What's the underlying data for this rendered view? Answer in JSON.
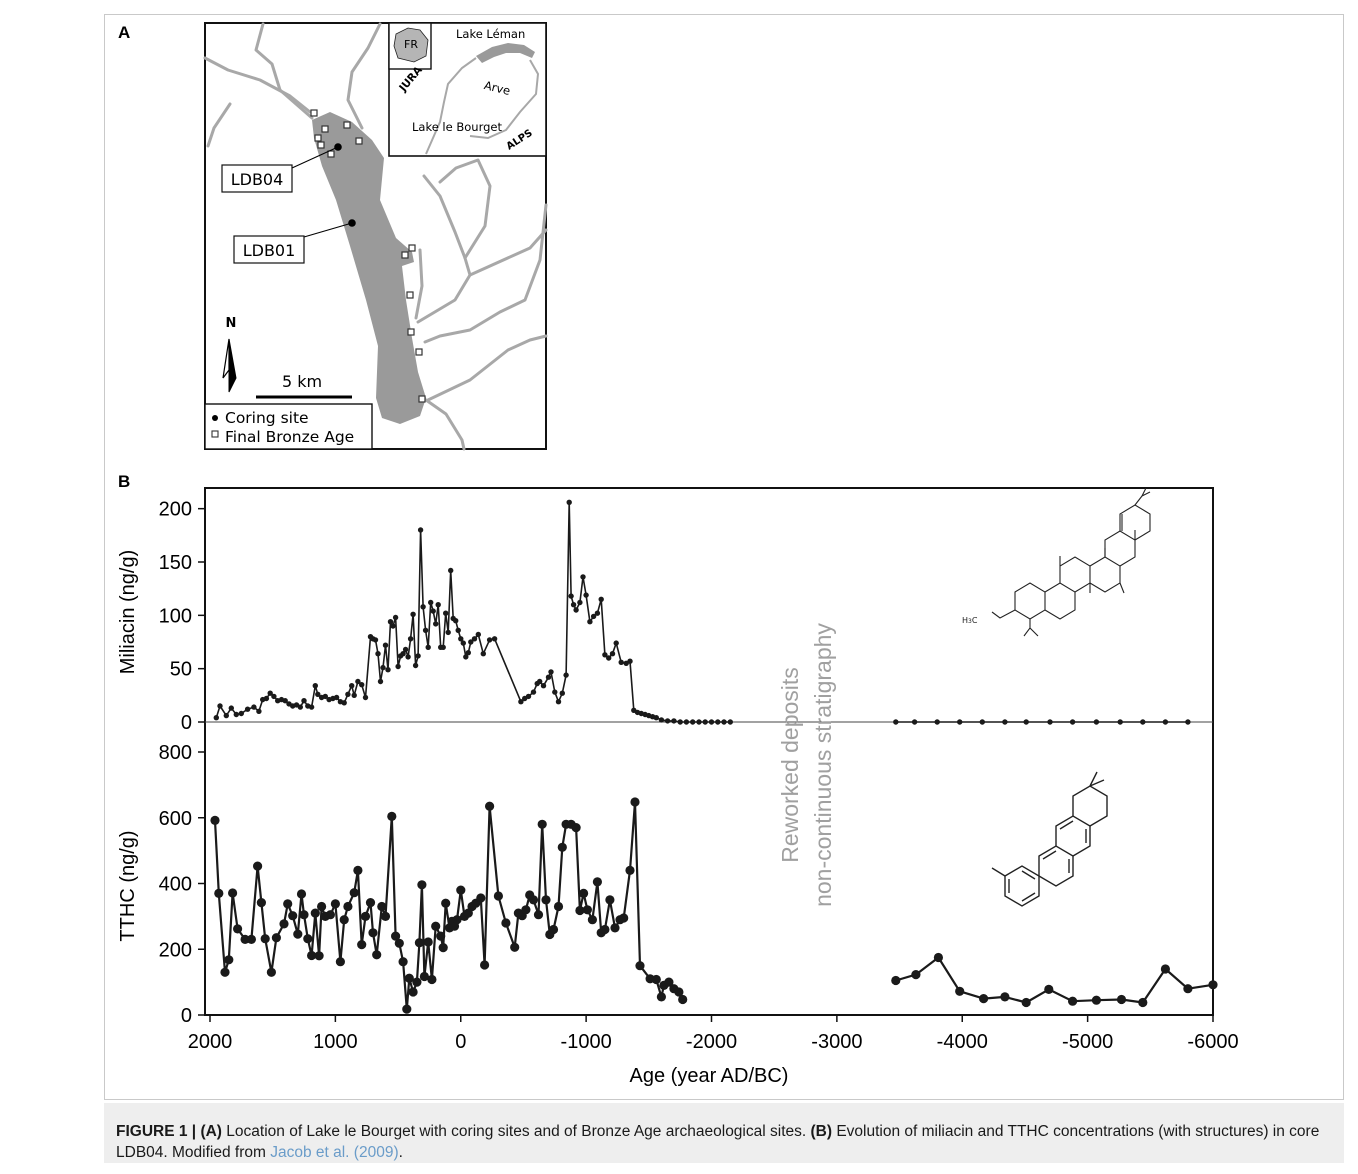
{
  "panel_a": {
    "label": "A",
    "inset": {
      "country": "FR",
      "lake_leman": "Lake Léman",
      "arve": "Arve",
      "lake_bourget": "Lake le Bourget",
      "jura": "JURA",
      "alps": "ALPS"
    },
    "callouts": [
      "LDB04",
      "LDB01"
    ],
    "north": "N",
    "scale": "5 km",
    "legend": [
      "Coring site",
      "Final Bronze Age"
    ],
    "colors": {
      "lake": "#9a9a9a",
      "rivers": "#a8a8a8"
    }
  },
  "panel_b": {
    "label": "B",
    "overlay": [
      "Reworked deposits",
      "non-continuous stratigraphy"
    ]
  },
  "chart_data": {
    "type": "line",
    "xlabel": "Age (year AD/BC)",
    "xlim": [
      2000,
      -6000
    ],
    "x_ticks": [
      "2000",
      "1000",
      "0",
      "-1000",
      "-2000",
      "-3000",
      "-4000",
      "-5000",
      "-6000"
    ],
    "panels": [
      {
        "ylabel": "Miliacin (ng/g)",
        "ylim": [
          0,
          210
        ],
        "y_ticks": [
          "0",
          "50",
          "100",
          "150",
          "200"
        ],
        "marker": "small",
        "segments": [
          [
            [
              1950,
              4
            ],
            [
              1920,
              15
            ],
            [
              1870,
              6
            ],
            [
              1830,
              13
            ],
            [
              1790,
              7
            ],
            [
              1750,
              8
            ],
            [
              1700,
              12
            ],
            [
              1650,
              14
            ],
            [
              1610,
              10
            ],
            [
              1580,
              21
            ],
            [
              1550,
              22
            ],
            [
              1520,
              27
            ],
            [
              1490,
              24
            ],
            [
              1460,
              20
            ],
            [
              1430,
              21
            ],
            [
              1400,
              20
            ],
            [
              1370,
              17
            ],
            [
              1340,
              15
            ],
            [
              1310,
              16
            ],
            [
              1280,
              14
            ],
            [
              1250,
              20
            ],
            [
              1220,
              15
            ],
            [
              1190,
              14
            ],
            [
              1160,
              34
            ],
            [
              1140,
              26
            ],
            [
              1110,
              23
            ],
            [
              1080,
              24
            ],
            [
              1050,
              21
            ],
            [
              1020,
              22
            ],
            [
              990,
              23
            ],
            [
              960,
              19
            ],
            [
              930,
              18
            ],
            [
              900,
              26
            ],
            [
              870,
              34
            ],
            [
              850,
              25
            ],
            [
              820,
              38
            ],
            [
              790,
              35
            ],
            [
              760,
              23
            ],
            [
              720,
              80
            ],
            [
              700,
              78
            ],
            [
              680,
              77
            ],
            [
              660,
              64
            ],
            [
              640,
              38
            ],
            [
              620,
              51
            ],
            [
              600,
              72
            ],
            [
              580,
              49
            ],
            [
              560,
              94
            ],
            [
              540,
              90
            ],
            [
              520,
              98
            ],
            [
              500,
              52
            ],
            [
              480,
              62
            ],
            [
              460,
              64
            ],
            [
              440,
              68
            ],
            [
              420,
              61
            ],
            [
              400,
              78
            ],
            [
              380,
              101
            ],
            [
              360,
              53
            ],
            [
              340,
              62
            ],
            [
              320,
              180
            ],
            [
              300,
              108
            ],
            [
              280,
              86
            ],
            [
              260,
              70
            ],
            [
              240,
              112
            ],
            [
              220,
              104
            ],
            [
              200,
              92
            ],
            [
              180,
              110
            ],
            [
              160,
              70
            ],
            [
              140,
              70
            ],
            [
              120,
              102
            ],
            [
              100,
              84
            ],
            [
              80,
              142
            ],
            [
              60,
              97
            ],
            [
              40,
              95
            ],
            [
              20,
              86
            ],
            [
              0,
              78
            ],
            [
              -20,
              74
            ],
            [
              -40,
              61
            ],
            [
              -60,
              65
            ],
            [
              -80,
              75
            ],
            [
              -110,
              78
            ],
            [
              -140,
              82
            ],
            [
              -180,
              64
            ],
            [
              -230,
              77
            ],
            [
              -270,
              78
            ],
            [
              -480,
              19
            ],
            [
              -510,
              22
            ],
            [
              -540,
              24
            ],
            [
              -580,
              28
            ],
            [
              -610,
              36
            ],
            [
              -630,
              38
            ],
            [
              -660,
              34
            ],
            [
              -700,
              42
            ],
            [
              -720,
              47
            ],
            [
              -750,
              28
            ],
            [
              -780,
              19
            ],
            [
              -810,
              27
            ],
            [
              -840,
              44
            ],
            [
              -865,
              206
            ],
            [
              -880,
              118
            ],
            [
              -900,
              110
            ],
            [
              -920,
              105
            ],
            [
              -950,
              112
            ],
            [
              -975,
              136
            ],
            [
              -1000,
              119
            ],
            [
              -1030,
              94
            ],
            [
              -1060,
              99
            ],
            [
              -1090,
              102
            ],
            [
              -1120,
              115
            ],
            [
              -1150,
              63
            ],
            [
              -1180,
              60
            ],
            [
              -1210,
              64
            ],
            [
              -1240,
              74
            ],
            [
              -1280,
              56
            ],
            [
              -1320,
              55
            ],
            [
              -1350,
              57
            ],
            [
              -1380,
              11
            ],
            [
              -1410,
              9
            ],
            [
              -1440,
              8
            ],
            [
              -1470,
              7
            ],
            [
              -1500,
              6
            ],
            [
              -1530,
              5
            ],
            [
              -1560,
              4
            ],
            [
              -1600,
              2
            ],
            [
              -1650,
              1
            ],
            [
              -1700,
              1
            ],
            [
              -1750,
              0
            ],
            [
              -1800,
              0
            ],
            [
              -1850,
              0
            ],
            [
              -1900,
              0
            ],
            [
              -1950,
              0
            ],
            [
              -2000,
              0
            ],
            [
              -2050,
              0
            ],
            [
              -2100,
              0
            ],
            [
              -2150,
              0
            ]
          ],
          [
            [
              -3470,
              0
            ],
            [
              -3620,
              0
            ],
            [
              -3800,
              0
            ],
            [
              -3980,
              0
            ],
            [
              -4160,
              0
            ],
            [
              -4340,
              0
            ],
            [
              -4510,
              0
            ],
            [
              -4700,
              0
            ],
            [
              -4880,
              0
            ],
            [
              -5070,
              0
            ],
            [
              -5260,
              0
            ],
            [
              -5440,
              0
            ],
            [
              -5620,
              0
            ],
            [
              -5800,
              0
            ]
          ]
        ]
      },
      {
        "ylabel": "TTHC (ng/g)",
        "ylim": [
          0,
          800
        ],
        "y_ticks": [
          "0",
          "200",
          "400",
          "600",
          "800"
        ],
        "marker": "large",
        "segments": [
          [
            [
              1960,
              592
            ],
            [
              1930,
              370
            ],
            [
              1880,
              130
            ],
            [
              1850,
              168
            ],
            [
              1820,
              371
            ],
            [
              1780,
              262
            ],
            [
              1720,
              230
            ],
            [
              1670,
              230
            ],
            [
              1620,
              453
            ],
            [
              1590,
              342
            ],
            [
              1560,
              232
            ],
            [
              1510,
              130
            ],
            [
              1470,
              235
            ],
            [
              1410,
              277
            ],
            [
              1380,
              338
            ],
            [
              1340,
              302
            ],
            [
              1300,
              246
            ],
            [
              1270,
              368
            ],
            [
              1250,
              305
            ],
            [
              1220,
              232
            ],
            [
              1190,
              181
            ],
            [
              1160,
              310
            ],
            [
              1130,
              180
            ],
            [
              1110,
              330
            ],
            [
              1080,
              300
            ],
            [
              1040,
              305
            ],
            [
              1000,
              338
            ],
            [
              960,
              162
            ],
            [
              930,
              290
            ],
            [
              900,
              330
            ],
            [
              850,
              372
            ],
            [
              820,
              440
            ],
            [
              790,
              214
            ],
            [
              760,
              300
            ],
            [
              720,
              342
            ],
            [
              700,
              250
            ],
            [
              670,
              183
            ],
            [
              630,
              330
            ],
            [
              600,
              300
            ],
            [
              550,
              604
            ],
            [
              520,
              240
            ],
            [
              490,
              218
            ],
            [
              460,
              162
            ],
            [
              430,
              18
            ],
            [
              410,
              112
            ],
            [
              380,
              70
            ],
            [
              350,
              100
            ],
            [
              330,
              220
            ],
            [
              310,
              396
            ],
            [
              290,
              117
            ],
            [
              260,
              222
            ],
            [
              230,
              108
            ],
            [
              200,
              270
            ],
            [
              160,
              240
            ],
            [
              140,
              205
            ],
            [
              120,
              340
            ],
            [
              90,
              265
            ],
            [
              70,
              285
            ],
            [
              50,
              270
            ],
            [
              30,
              290
            ],
            [
              0,
              380
            ],
            [
              -30,
              300
            ],
            [
              -60,
              310
            ],
            [
              -90,
              330
            ],
            [
              -120,
              340
            ],
            [
              -160,
              356
            ],
            [
              -190,
              152
            ],
            [
              -230,
              635
            ],
            [
              -300,
              362
            ],
            [
              -360,
              280
            ],
            [
              -430,
              206
            ],
            [
              -460,
              310
            ],
            [
              -490,
              302
            ],
            [
              -520,
              320
            ],
            [
              -550,
              365
            ],
            [
              -580,
              350
            ],
            [
              -620,
              305
            ],
            [
              -650,
              580
            ],
            [
              -680,
              350
            ],
            [
              -710,
              245
            ],
            [
              -740,
              260
            ],
            [
              -780,
              330
            ],
            [
              -810,
              510
            ],
            [
              -840,
              580
            ],
            [
              -880,
              580
            ],
            [
              -920,
              570
            ],
            [
              -950,
              318
            ],
            [
              -980,
              370
            ],
            [
              -1010,
              320
            ],
            [
              -1050,
              290
            ],
            [
              -1090,
              405
            ],
            [
              -1120,
              250
            ],
            [
              -1150,
              260
            ],
            [
              -1190,
              350
            ],
            [
              -1230,
              265
            ],
            [
              -1270,
              290
            ],
            [
              -1300,
              295
            ],
            [
              -1350,
              440
            ],
            [
              -1390,
              648
            ],
            [
              -1430,
              150
            ],
            [
              -1510,
              110
            ],
            [
              -1560,
              108
            ],
            [
              -1600,
              55
            ],
            [
              -1620,
              90
            ],
            [
              -1660,
              100
            ],
            [
              -1700,
              80
            ],
            [
              -1740,
              70
            ],
            [
              -1770,
              47
            ]
          ],
          [
            [
              -3470,
              105
            ],
            [
              -3630,
              123
            ],
            [
              -3810,
              175
            ],
            [
              -3980,
              72
            ],
            [
              -4170,
              50
            ],
            [
              -4340,
              55
            ],
            [
              -4510,
              38
            ],
            [
              -4690,
              78
            ],
            [
              -4880,
              42
            ],
            [
              -5070,
              45
            ],
            [
              -5270,
              47
            ],
            [
              -5440,
              38
            ],
            [
              -5620,
              140
            ],
            [
              -5800,
              80
            ],
            [
              -6000,
              92
            ]
          ]
        ]
      }
    ]
  },
  "caption": {
    "fig": "FIGURE 1 |",
    "a": "(A)",
    "a_text": " Location of Lake le Bourget with coring sites and of Bronze Age archaeological sites. ",
    "b": "(B)",
    "b_text": " Evolution of miliacin and TTHC concentrations (with structures) in core LDB04. Modified from ",
    "ref": "Jacob et al. (2009)",
    "end": "."
  }
}
